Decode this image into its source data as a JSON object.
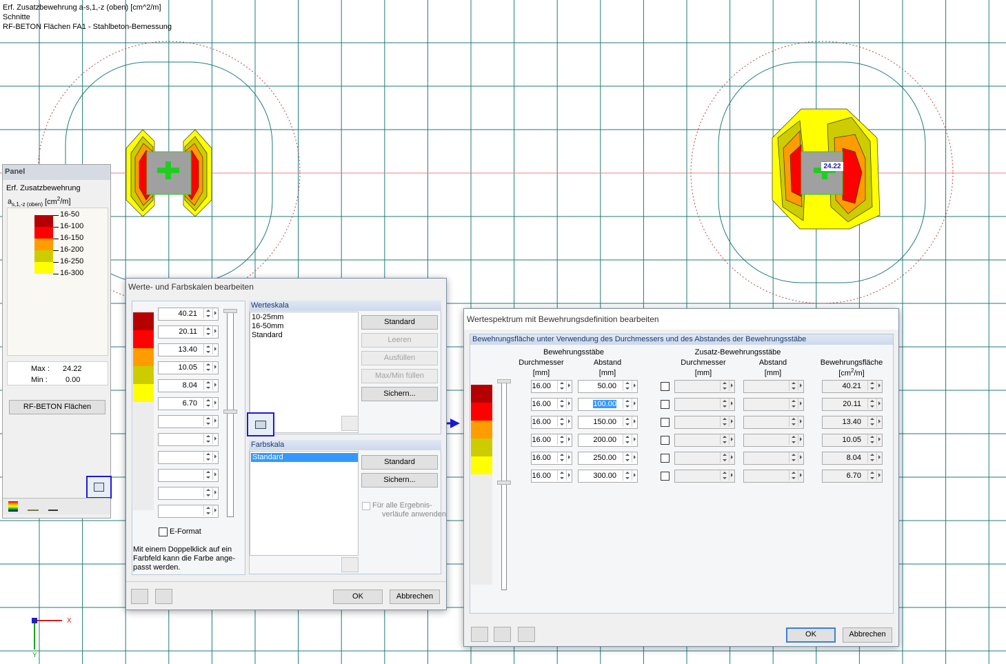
{
  "viewport_header": {
    "lines": [
      "Erf. Zusatzbewehrung a-s,1,-z (oben) [cm^2/m]",
      "Schnitte",
      "RF-BETON Flächen FA1 - Stahlbeton-Bemessung"
    ]
  },
  "model_view": {
    "result_label": "24.22",
    "axis_x": "X",
    "axis_y": "Y"
  },
  "panel": {
    "title": "Panel",
    "heading": "Erf. Zusatzbewehrung",
    "subheading": {
      "symbol": "a",
      "subscript": "s,1,-z (oben)",
      "unit_pre": "[cm",
      "unit_exp": "2",
      "unit_post": "/m]"
    },
    "legend": {
      "labels": [
        "16-50",
        "16-100",
        "16-150",
        "16-200",
        "16-250",
        "16-300"
      ],
      "colors": [
        "#b40000",
        "#ff0000",
        "#ff9c00",
        "#cccc00",
        "#ffff00"
      ]
    },
    "max_label": "Max  :",
    "max_value": "24.22",
    "min_label": "Min  :",
    "min_value": "0.00",
    "button": "RF-BETON Flächen"
  },
  "dialog_scales": {
    "title": "Werte- und Farbskalen bearbeiten",
    "values": [
      "40.21",
      "20.11",
      "13.40",
      "10.05",
      "8.04",
      "6.70"
    ],
    "value_scale": {
      "title": "Werteskala",
      "items": [
        "10-25mm",
        "16-50mm",
        "Standard"
      ],
      "buttons": [
        "Standard",
        "Leeren",
        "Ausfüllen",
        "Max/Min füllen",
        "Sichern..."
      ]
    },
    "color_scale": {
      "title": "Farbskala",
      "items": [
        "Standard"
      ],
      "buttons": [
        "Standard",
        "Sichern..."
      ]
    },
    "apply_all": [
      "Für alle Ergebnis-",
      "verläufe anwenden"
    ],
    "e_format": "E-Format",
    "note": [
      "Mit einem Doppelklick auf ein",
      "Farbfeld kann die Farbe ange-",
      "passt werden."
    ],
    "ok": "OK",
    "cancel": "Abbrechen"
  },
  "dialog_spectrum": {
    "title": "Wertespektrum mit Bewehrungsdefinition bearbeiten",
    "section": "Bewehrungsfläche unter Verwendung des Durchmessers und des Abstandes der Bewehrungsstäbe",
    "group_bars": "Bewehrungsstäbe",
    "group_extra": "Zusatz-Bewehrungsstäbe",
    "col_diameter": "Durchmesser",
    "col_diameter_unit": "[mm]",
    "col_spacing": "Abstand",
    "col_spacing_unit": "[mm]",
    "col_extra_diameter": "Durchmesser",
    "col_extra_diameter_unit": "[mm]",
    "col_extra_spacing": "Abstand",
    "col_extra_spacing_unit": "[mm]",
    "col_area": "Bewehrungsfläche",
    "col_area_unit": {
      "pre": "[cm",
      "exp": "2",
      "post": "/m]"
    },
    "rows": [
      {
        "diameter": "16.00",
        "spacing": "50.00",
        "area": "40.21"
      },
      {
        "diameter": "16.00",
        "spacing": "100.00",
        "area": "20.11"
      },
      {
        "diameter": "16.00",
        "spacing": "150.00",
        "area": "13.40"
      },
      {
        "diameter": "16.00",
        "spacing": "200.00",
        "area": "10.05"
      },
      {
        "diameter": "16.00",
        "spacing": "250.00",
        "area": "8.04"
      },
      {
        "diameter": "16.00",
        "spacing": "300.00",
        "area": "6.70"
      }
    ],
    "ok": "OK",
    "cancel": "Abbrechen"
  }
}
